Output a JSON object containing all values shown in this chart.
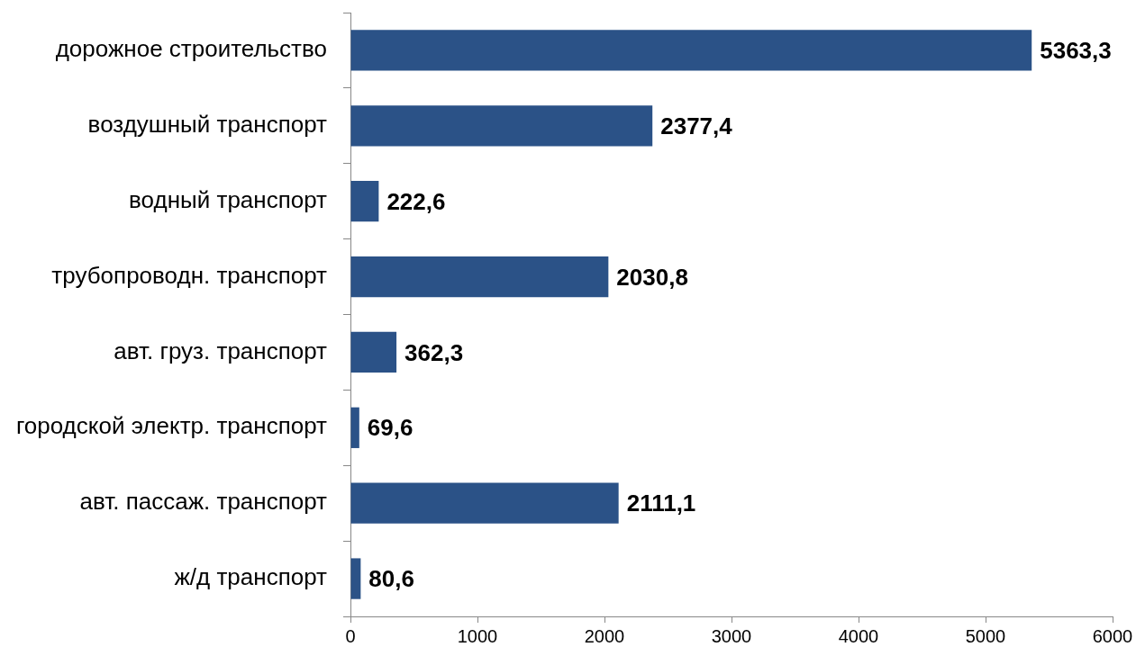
{
  "chart_data": {
    "type": "bar",
    "orientation": "horizontal",
    "categories": [
      "дорожное строительство",
      "воздушный транспорт",
      "водный транспорт",
      "трубопроводн. транспорт",
      "авт. груз. транспорт",
      "городской электр. транспорт",
      "авт. пассаж. транспорт",
      "ж/д транспорт"
    ],
    "values": [
      5363.3,
      2377.4,
      222.6,
      2030.8,
      362.3,
      69.6,
      2111.1,
      80.6
    ],
    "value_labels": [
      "5363,3",
      "2377,4",
      "222,6",
      "2030,8",
      "362,3",
      "69,6",
      "2111,1",
      "80,6"
    ],
    "color": "#2b5287",
    "xlim": [
      0,
      6000
    ],
    "xticks": [
      0,
      1000,
      2000,
      3000,
      4000,
      5000,
      6000
    ]
  }
}
